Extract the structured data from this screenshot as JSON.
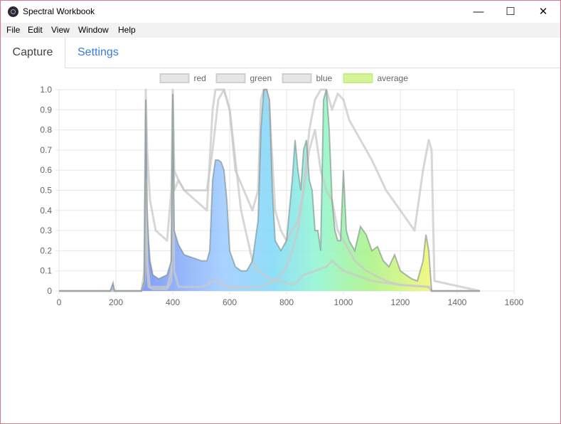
{
  "window": {
    "title": "Spectral Workbook",
    "controls": {
      "minimize": "—",
      "maximize": "☐",
      "close": "✕"
    }
  },
  "menu": [
    "File",
    "Edit",
    "View",
    "Window",
    "Help"
  ],
  "tabs": [
    {
      "label": "Capture",
      "active": true
    },
    {
      "label": "Settings",
      "active": false
    }
  ],
  "chart_data": {
    "type": "area",
    "xlim": [
      0,
      1600
    ],
    "ylim": [
      0,
      1.0
    ],
    "x_ticks": [
      0,
      200,
      400,
      600,
      800,
      1000,
      1200,
      1400,
      1600
    ],
    "y_ticks": [
      "0",
      "0.1",
      "0.2",
      "0.3",
      "0.4",
      "0.5",
      "0.6",
      "0.7",
      "0.8",
      "0.9",
      "1.0"
    ],
    "grid": true,
    "legend_position": "top",
    "series": [
      {
        "name": "red",
        "color": "#dddddd",
        "x": [
          0,
          180,
          190,
          195,
          200,
          290,
          300,
          305,
          310,
          315,
          330,
          380,
          395,
          400,
          405,
          420,
          440,
          480,
          500,
          520,
          540,
          550,
          560,
          570,
          580,
          600,
          620,
          650,
          700,
          720,
          740,
          760,
          780,
          800,
          820,
          840,
          860,
          880,
          900,
          920,
          940,
          960,
          980,
          1000,
          1020,
          1040,
          1060,
          1080,
          1100,
          1150,
          1200,
          1250,
          1280,
          1300,
          1310,
          1320,
          1480
        ],
        "y": [
          0,
          0,
          0.02,
          0,
          0,
          0,
          0.05,
          0.55,
          0.1,
          0.02,
          0.01,
          0.01,
          0.05,
          0.55,
          0.1,
          0.02,
          0.02,
          0.02,
          0.02,
          0.03,
          0.05,
          0.05,
          0.05,
          0.04,
          0.03,
          0.02,
          0.02,
          0.02,
          0.02,
          0.03,
          0.04,
          0.05,
          0.08,
          0.12,
          0.2,
          0.3,
          0.5,
          0.8,
          0.95,
          1.0,
          1.0,
          0.9,
          0.98,
          0.95,
          0.85,
          0.8,
          0.75,
          0.7,
          0.65,
          0.5,
          0.4,
          0.3,
          0.6,
          0.75,
          0.7,
          0.05,
          0
        ]
      },
      {
        "name": "green",
        "color": "#dddddd",
        "x": [
          0,
          290,
          300,
          305,
          310,
          320,
          380,
          395,
          400,
          405,
          420,
          440,
          480,
          520,
          540,
          550,
          560,
          580,
          600,
          620,
          650,
          680,
          700,
          710,
          720,
          730,
          740,
          760,
          780,
          800,
          820,
          840,
          860,
          880,
          900,
          920,
          940,
          960,
          980,
          1000,
          1020,
          1040,
          1080,
          1150,
          1200,
          1300,
          1310,
          1480
        ],
        "y": [
          0,
          0,
          0.05,
          0.55,
          0.15,
          0.02,
          0.02,
          0.1,
          0.95,
          0.5,
          0.55,
          0.5,
          0.45,
          0.4,
          0.9,
          1.0,
          1.0,
          1.0,
          0.9,
          0.6,
          0.5,
          0.4,
          0.5,
          0.95,
          1.0,
          1.0,
          0.9,
          0.4,
          0.3,
          0.25,
          0.3,
          0.35,
          0.5,
          0.7,
          0.8,
          0.6,
          0.5,
          0.45,
          0.3,
          0.25,
          0.2,
          0.15,
          0.1,
          0.05,
          0.03,
          0.02,
          0.0,
          0
        ]
      },
      {
        "name": "blue",
        "color": "#dddddd",
        "x": [
          0,
          290,
          300,
          305,
          310,
          320,
          340,
          380,
          395,
          400,
          405,
          420,
          440,
          480,
          520,
          540,
          560,
          580,
          600,
          640,
          680,
          700,
          720,
          740,
          780,
          800,
          820,
          840,
          860,
          900,
          940,
          960,
          1000,
          1100,
          1200,
          1300,
          1310,
          1480
        ],
        "y": [
          0,
          0,
          0.1,
          1.0,
          0.7,
          0.45,
          0.3,
          0.25,
          0.5,
          1.0,
          0.6,
          0.55,
          0.5,
          0.5,
          0.5,
          0.7,
          0.95,
          1.0,
          0.9,
          0.4,
          0.15,
          0.1,
          0.08,
          0.06,
          0.05,
          0.04,
          0.03,
          0.05,
          0.08,
          0.1,
          0.12,
          0.15,
          0.1,
          0.05,
          0.03,
          0.02,
          0,
          0
        ]
      },
      {
        "name": "average",
        "color": "#d6f59a",
        "x": [
          0,
          180,
          190,
          195,
          200,
          290,
          300,
          305,
          310,
          315,
          320,
          330,
          350,
          380,
          395,
          400,
          405,
          420,
          440,
          460,
          480,
          500,
          520,
          530,
          540,
          550,
          560,
          570,
          580,
          590,
          600,
          620,
          640,
          660,
          680,
          700,
          710,
          720,
          730,
          740,
          750,
          760,
          780,
          800,
          820,
          830,
          840,
          850,
          860,
          870,
          880,
          890,
          900,
          910,
          920,
          930,
          940,
          950,
          960,
          970,
          980,
          990,
          1000,
          1010,
          1020,
          1040,
          1060,
          1080,
          1100,
          1120,
          1140,
          1160,
          1180,
          1200,
          1220,
          1240,
          1260,
          1280,
          1290,
          1300,
          1310,
          1480
        ],
        "y": [
          0,
          0,
          0.04,
          0,
          0,
          0,
          0.05,
          0.95,
          0.4,
          0.25,
          0.15,
          0.08,
          0.06,
          0.08,
          0.15,
          0.98,
          0.3,
          0.23,
          0.18,
          0.17,
          0.16,
          0.15,
          0.15,
          0.2,
          0.55,
          0.65,
          0.65,
          0.64,
          0.6,
          0.45,
          0.2,
          0.12,
          0.1,
          0.1,
          0.15,
          0.35,
          0.8,
          1.0,
          1.0,
          0.95,
          0.5,
          0.25,
          0.2,
          0.25,
          0.55,
          0.75,
          0.6,
          0.5,
          0.7,
          0.75,
          0.55,
          0.5,
          0.3,
          0.3,
          0.2,
          0.95,
          1.0,
          0.8,
          0.45,
          0.3,
          0.25,
          0.25,
          0.6,
          0.3,
          0.25,
          0.2,
          0.32,
          0.28,
          0.2,
          0.22,
          0.15,
          0.12,
          0.18,
          0.1,
          0.08,
          0.06,
          0.05,
          0.15,
          0.28,
          0.2,
          0.0,
          0
        ]
      }
    ]
  }
}
